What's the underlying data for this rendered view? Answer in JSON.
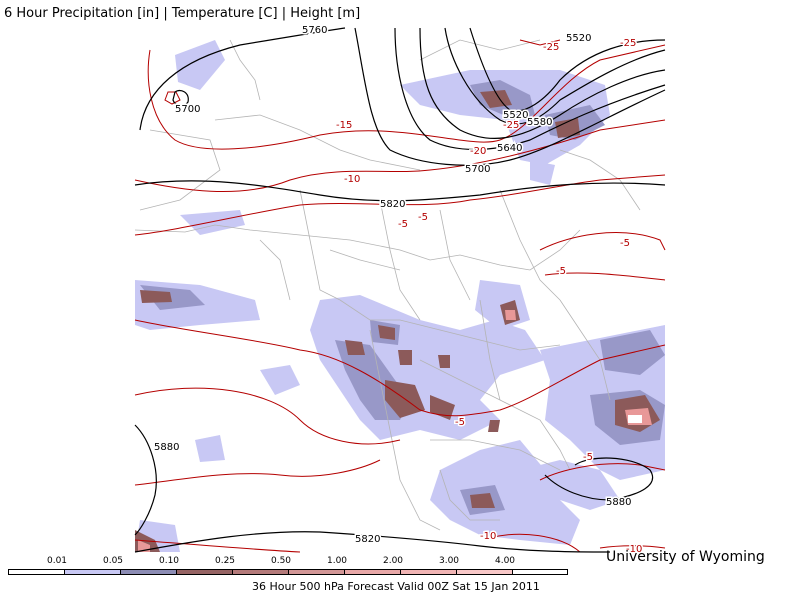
{
  "title": "6 Hour Precipitation [in] | Temperature [C] | Height [m]",
  "credit": "University of Wyoming",
  "valid_time": "36 Hour 500 hPa Forecast Valid 00Z Sat 15 Jan 2011",
  "legend": {
    "levels": [
      "0.01",
      "0.05",
      "0.10",
      "0.25",
      "0.50",
      "1.00",
      "2.00",
      "3.00",
      "4.00"
    ],
    "colors": [
      "#ffffff",
      "#c8c8f4",
      "#8c8cb4",
      "#966464",
      "#b47a7a",
      "#d29696",
      "#e8a8a8",
      "#f0b4b4",
      "#f8c8c8",
      "#ffffff"
    ]
  },
  "colors": {
    "height_contour": "#000000",
    "temperature_contour": "#b40000",
    "border": "#b4b4b4",
    "precip_light": "#c8c8f4",
    "precip_medium": "#9898c8",
    "precip_heavy": "#8c5a5a",
    "precip_max": "#e89898"
  },
  "height_labels": [
    "5760",
    "5520",
    "5700",
    "5520",
    "5580",
    "5640",
    "5700",
    "5820",
    "5880",
    "5880",
    "5820"
  ],
  "temp_labels": [
    "-25",
    "-25",
    "-25",
    "-15",
    "-20",
    "-10",
    "-5",
    "-5",
    "-5",
    "-5",
    "-5",
    "-5",
    "-10",
    "-10"
  ]
}
